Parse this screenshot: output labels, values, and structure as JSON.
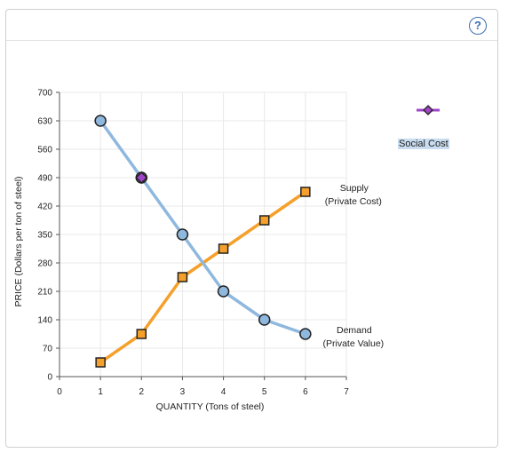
{
  "toolbar": {
    "help_label": "?"
  },
  "legend": {
    "social_cost_label": "Social Cost",
    "social_cost_color": "#a044c8"
  },
  "colors": {
    "supply": "#f5a02a",
    "demand": "#8fb8de",
    "grid": "#e8e8e8",
    "marker_outline": "#222222"
  },
  "icons": {
    "help": "question-circle-icon",
    "legend_marker": "diamond-marker-icon"
  },
  "chart_data": {
    "type": "line",
    "title": "",
    "xlabel": "QUANTITY (Tons of steel)",
    "ylabel": "PRICE (Dollars per ton of steel)",
    "xlim": [
      0,
      7
    ],
    "ylim": [
      0,
      700
    ],
    "xticks": [
      0,
      1,
      2,
      3,
      4,
      5,
      6,
      7
    ],
    "yticks": [
      0,
      70,
      140,
      210,
      280,
      350,
      420,
      490,
      560,
      630,
      700
    ],
    "grid": true,
    "series": [
      {
        "name": "Supply (Private Cost)",
        "label_line1": "Supply",
        "label_line2": "(Private Cost)",
        "marker": "square",
        "color": "#f5a02a",
        "x": [
          1,
          2,
          3,
          4,
          5,
          6
        ],
        "y": [
          35,
          105,
          245,
          315,
          385,
          455
        ]
      },
      {
        "name": "Demand (Private Value)",
        "label_line1": "Demand",
        "label_line2": "(Private Value)",
        "marker": "circle",
        "color": "#8fb8de",
        "x": [
          1,
          2,
          3,
          4,
          5,
          6
        ],
        "y": [
          630,
          490,
          350,
          210,
          140,
          105
        ]
      }
    ],
    "social_cost_points": [
      {
        "x": 2,
        "y": 490
      }
    ]
  }
}
